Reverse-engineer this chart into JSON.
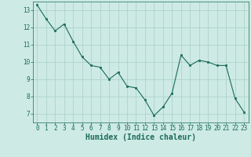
{
  "x": [
    0,
    1,
    2,
    3,
    4,
    5,
    6,
    7,
    8,
    9,
    10,
    11,
    12,
    13,
    14,
    15,
    16,
    17,
    18,
    19,
    20,
    21,
    22,
    23
  ],
  "y": [
    13.3,
    12.5,
    11.8,
    12.2,
    11.2,
    10.3,
    9.8,
    9.7,
    9.0,
    9.4,
    8.6,
    8.5,
    7.8,
    6.9,
    7.4,
    8.2,
    10.4,
    9.8,
    10.1,
    10.0,
    9.8,
    9.8,
    7.9,
    7.1
  ],
  "line_color": "#1a6b5a",
  "marker_color": "#1a6b5a",
  "bg_color": "#cdeae4",
  "grid_color": "#aed4cc",
  "xlabel": "Humidex (Indice chaleur)",
  "xlim": [
    -0.5,
    23.5
  ],
  "ylim": [
    6.5,
    13.5
  ],
  "yticks": [
    7,
    8,
    9,
    10,
    11,
    12,
    13
  ],
  "xticks": [
    0,
    1,
    2,
    3,
    4,
    5,
    6,
    7,
    8,
    9,
    10,
    11,
    12,
    13,
    14,
    15,
    16,
    17,
    18,
    19,
    20,
    21,
    22,
    23
  ],
  "tick_color": "#1a6b5a",
  "label_fontsize": 5.5,
  "axis_label_fontsize": 7.0
}
